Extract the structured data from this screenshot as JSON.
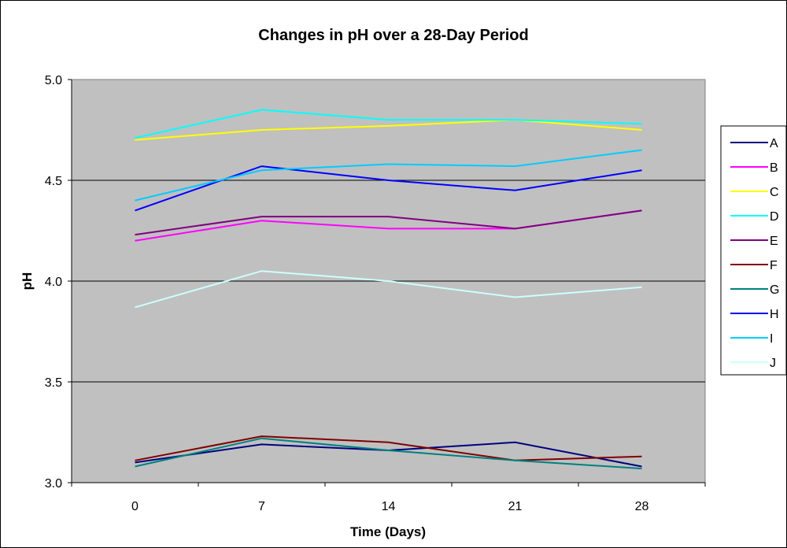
{
  "chart_data": {
    "type": "line",
    "title": "Changes in pH over a 28-Day Period",
    "xlabel": "Time (Days)",
    "ylabel": "pH",
    "categories": [
      "0",
      "7",
      "14",
      "21",
      "28"
    ],
    "x": [
      0,
      7,
      14,
      21,
      28
    ],
    "ylim": [
      3.0,
      5.0
    ],
    "yticks": [
      "3.0",
      "3.5",
      "4.0",
      "4.5",
      "5.0"
    ],
    "grid": "horizontal",
    "legend_position": "right",
    "plot_background": "#c0c0c0",
    "series": [
      {
        "name": "A",
        "color": "#000080",
        "values": [
          3.1,
          3.19,
          3.16,
          3.2,
          3.08
        ]
      },
      {
        "name": "B",
        "color": "#ff00ff",
        "values": [
          4.2,
          4.3,
          4.26,
          4.26,
          4.35
        ]
      },
      {
        "name": "C",
        "color": "#ffff00",
        "values": [
          4.7,
          4.75,
          4.77,
          4.8,
          4.75
        ]
      },
      {
        "name": "D",
        "color": "#00ffff",
        "values": [
          4.71,
          4.85,
          4.8,
          4.8,
          4.78
        ]
      },
      {
        "name": "E",
        "color": "#800080",
        "values": [
          4.23,
          4.32,
          4.32,
          4.26,
          4.35
        ]
      },
      {
        "name": "F",
        "color": "#800000",
        "values": [
          3.11,
          3.23,
          3.2,
          3.11,
          3.13
        ]
      },
      {
        "name": "G",
        "color": "#008080",
        "values": [
          3.08,
          3.22,
          3.16,
          3.11,
          3.07
        ]
      },
      {
        "name": "H",
        "color": "#0000ff",
        "values": [
          4.35,
          4.57,
          4.5,
          4.45,
          4.55
        ]
      },
      {
        "name": "I",
        "color": "#00ccff",
        "values": [
          4.4,
          4.55,
          4.58,
          4.57,
          4.65
        ]
      },
      {
        "name": "J",
        "color": "#ccffff",
        "values": [
          3.87,
          4.05,
          4.0,
          3.92,
          3.97
        ]
      }
    ]
  }
}
